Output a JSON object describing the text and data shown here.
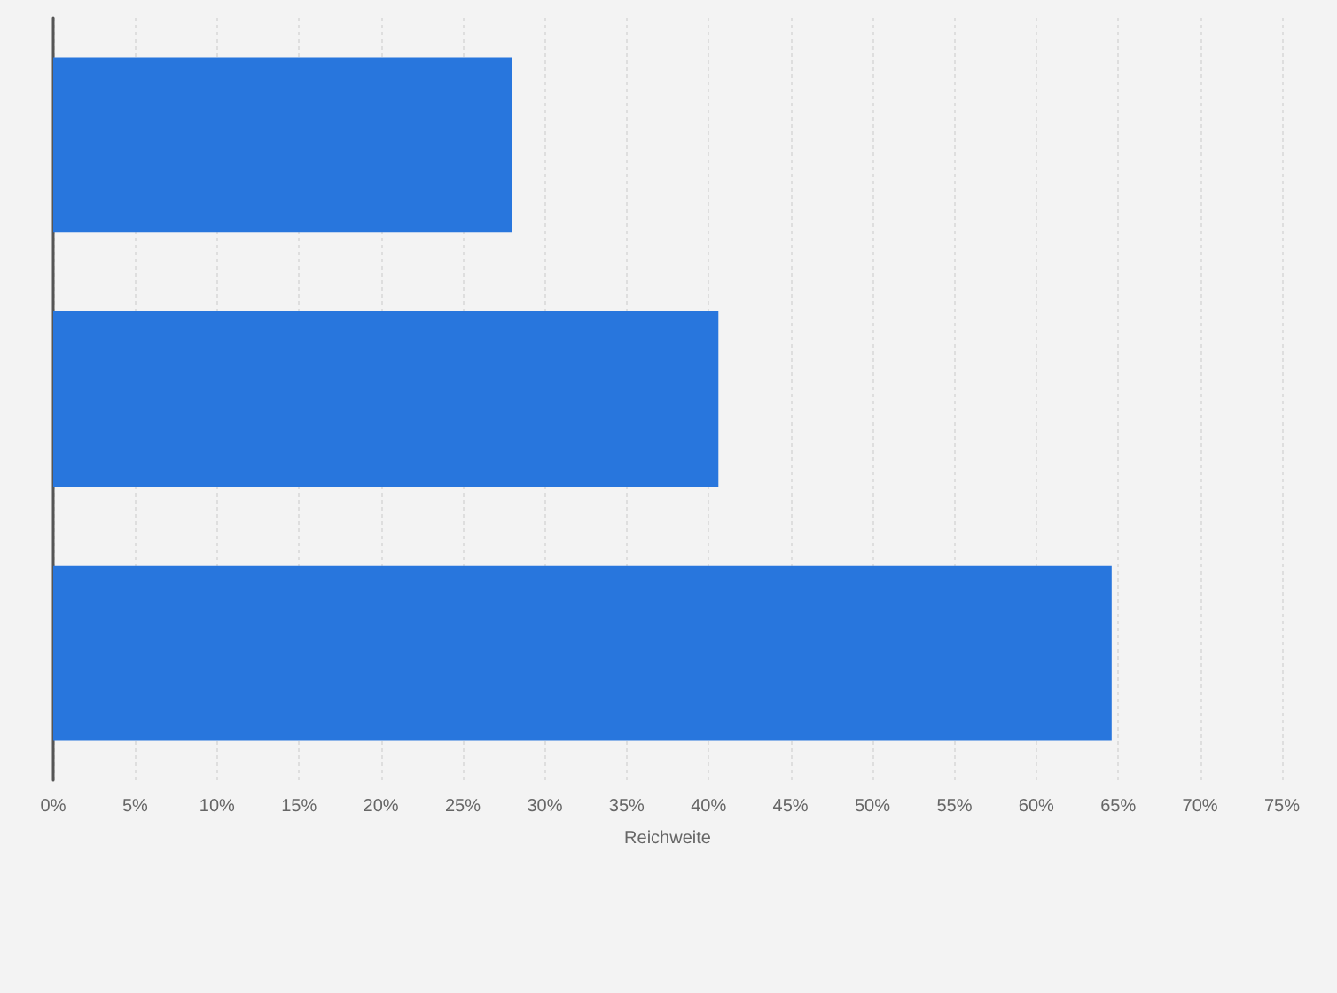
{
  "chart_data": {
    "type": "bar",
    "orientation": "horizontal",
    "categories": [
      null,
      null,
      null
    ],
    "values": [
      28,
      40.6,
      64.6
    ],
    "color": "#2876dd",
    "xlabel": "Reichweite",
    "xlim": [
      0,
      75
    ],
    "xticks": [
      {
        "value": 0,
        "label": "0%"
      },
      {
        "value": 5,
        "label": "5%"
      },
      {
        "value": 10,
        "label": "10%"
      },
      {
        "value": 15,
        "label": "15%"
      },
      {
        "value": 20,
        "label": "20%"
      },
      {
        "value": 25,
        "label": "25%"
      },
      {
        "value": 30,
        "label": "30%"
      },
      {
        "value": 35,
        "label": "35%"
      },
      {
        "value": 40,
        "label": "40%"
      },
      {
        "value": 45,
        "label": "45%"
      },
      {
        "value": 50,
        "label": "50%"
      },
      {
        "value": 55,
        "label": "55%"
      },
      {
        "value": 60,
        "label": "60%"
      },
      {
        "value": 65,
        "label": "65%"
      },
      {
        "value": 70,
        "label": "70%"
      },
      {
        "value": 75,
        "label": "75%"
      }
    ],
    "grid": "x"
  }
}
